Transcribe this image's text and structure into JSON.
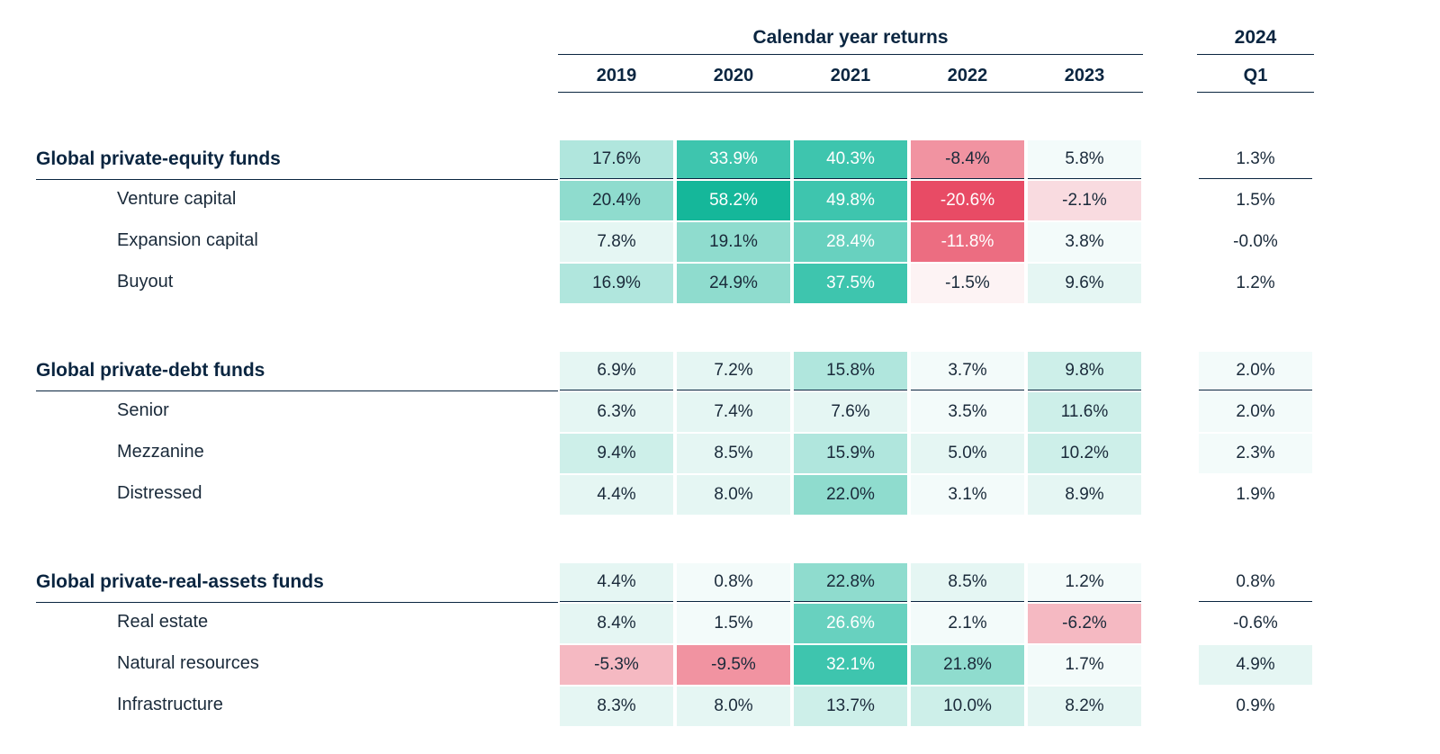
{
  "header": {
    "group_label": "Calendar year returns",
    "quarter_label": "2024",
    "years": [
      "2019",
      "2020",
      "2021",
      "2022",
      "2023"
    ],
    "quarter_col": "Q1"
  },
  "colors": {
    "teal_scale": [
      "#f3fbfa",
      "#e5f6f3",
      "#cdefe9",
      "#b0e6dd",
      "#8fdcce",
      "#68d1bf",
      "#3ec5ae",
      "#15b79a"
    ],
    "red_scale": [
      "#fdf3f4",
      "#f9dbe0",
      "#f5b9c2",
      "#f193a1",
      "#ec6d81",
      "#e84b65"
    ],
    "text_dark": "#1a2a3a",
    "text_white": "#ffffff",
    "border": "#0a2540"
  },
  "groups": [
    {
      "name": "Global private-equity funds",
      "totals": {
        "years": [
          {
            "v": "17.6%",
            "bg": "#b0e6dd",
            "fg": "#1a2a3a"
          },
          {
            "v": "33.9%",
            "bg": "#3ec5ae",
            "fg": "#ffffff"
          },
          {
            "v": "40.3%",
            "bg": "#3ec5ae",
            "fg": "#ffffff"
          },
          {
            "v": "-8.4%",
            "bg": "#f193a1",
            "fg": "#1a2a3a"
          },
          {
            "v": "5.8%",
            "bg": "#f3fbfa",
            "fg": "#1a2a3a"
          }
        ],
        "quarter": {
          "v": "1.3%",
          "bg": "#ffffff",
          "fg": "#1a2a3a"
        }
      },
      "rows": [
        {
          "label": "Venture capital",
          "years": [
            {
              "v": "20.4%",
              "bg": "#8fdcce",
              "fg": "#1a2a3a"
            },
            {
              "v": "58.2%",
              "bg": "#15b79a",
              "fg": "#ffffff"
            },
            {
              "v": "49.8%",
              "bg": "#3ec5ae",
              "fg": "#ffffff"
            },
            {
              "v": "-20.6%",
              "bg": "#e84b65",
              "fg": "#ffffff"
            },
            {
              "v": "-2.1%",
              "bg": "#f9dbe0",
              "fg": "#1a2a3a"
            }
          ],
          "quarter": {
            "v": "1.5%",
            "bg": "#ffffff",
            "fg": "#1a2a3a"
          }
        },
        {
          "label": "Expansion capital",
          "years": [
            {
              "v": "7.8%",
              "bg": "#e5f6f3",
              "fg": "#1a2a3a"
            },
            {
              "v": "19.1%",
              "bg": "#8fdcce",
              "fg": "#1a2a3a"
            },
            {
              "v": "28.4%",
              "bg": "#68d1bf",
              "fg": "#ffffff"
            },
            {
              "v": "-11.8%",
              "bg": "#ec6d81",
              "fg": "#ffffff"
            },
            {
              "v": "3.8%",
              "bg": "#f3fbfa",
              "fg": "#1a2a3a"
            }
          ],
          "quarter": {
            "v": "-0.0%",
            "bg": "#ffffff",
            "fg": "#1a2a3a"
          }
        },
        {
          "label": "Buyout",
          "years": [
            {
              "v": "16.9%",
              "bg": "#b0e6dd",
              "fg": "#1a2a3a"
            },
            {
              "v": "24.9%",
              "bg": "#8fdcce",
              "fg": "#1a2a3a"
            },
            {
              "v": "37.5%",
              "bg": "#3ec5ae",
              "fg": "#ffffff"
            },
            {
              "v": "-1.5%",
              "bg": "#fdf3f4",
              "fg": "#1a2a3a"
            },
            {
              "v": "9.6%",
              "bg": "#e5f6f3",
              "fg": "#1a2a3a"
            }
          ],
          "quarter": {
            "v": "1.2%",
            "bg": "#ffffff",
            "fg": "#1a2a3a"
          }
        }
      ]
    },
    {
      "name": "Global private-debt funds",
      "totals": {
        "years": [
          {
            "v": "6.9%",
            "bg": "#e5f6f3",
            "fg": "#1a2a3a"
          },
          {
            "v": "7.2%",
            "bg": "#e5f6f3",
            "fg": "#1a2a3a"
          },
          {
            "v": "15.8%",
            "bg": "#b0e6dd",
            "fg": "#1a2a3a"
          },
          {
            "v": "3.7%",
            "bg": "#f3fbfa",
            "fg": "#1a2a3a"
          },
          {
            "v": "9.8%",
            "bg": "#cdefe9",
            "fg": "#1a2a3a"
          }
        ],
        "quarter": {
          "v": "2.0%",
          "bg": "#f3fbfa",
          "fg": "#1a2a3a"
        }
      },
      "rows": [
        {
          "label": "Senior",
          "years": [
            {
              "v": "6.3%",
              "bg": "#e5f6f3",
              "fg": "#1a2a3a"
            },
            {
              "v": "7.4%",
              "bg": "#e5f6f3",
              "fg": "#1a2a3a"
            },
            {
              "v": "7.6%",
              "bg": "#e5f6f3",
              "fg": "#1a2a3a"
            },
            {
              "v": "3.5%",
              "bg": "#f3fbfa",
              "fg": "#1a2a3a"
            },
            {
              "v": "11.6%",
              "bg": "#cdefe9",
              "fg": "#1a2a3a"
            }
          ],
          "quarter": {
            "v": "2.0%",
            "bg": "#f3fbfa",
            "fg": "#1a2a3a"
          }
        },
        {
          "label": "Mezzanine",
          "years": [
            {
              "v": "9.4%",
              "bg": "#cdefe9",
              "fg": "#1a2a3a"
            },
            {
              "v": "8.5%",
              "bg": "#e5f6f3",
              "fg": "#1a2a3a"
            },
            {
              "v": "15.9%",
              "bg": "#b0e6dd",
              "fg": "#1a2a3a"
            },
            {
              "v": "5.0%",
              "bg": "#e5f6f3",
              "fg": "#1a2a3a"
            },
            {
              "v": "10.2%",
              "bg": "#cdefe9",
              "fg": "#1a2a3a"
            }
          ],
          "quarter": {
            "v": "2.3%",
            "bg": "#f3fbfa",
            "fg": "#1a2a3a"
          }
        },
        {
          "label": "Distressed",
          "years": [
            {
              "v": "4.4%",
              "bg": "#e5f6f3",
              "fg": "#1a2a3a"
            },
            {
              "v": "8.0%",
              "bg": "#e5f6f3",
              "fg": "#1a2a3a"
            },
            {
              "v": "22.0%",
              "bg": "#8fdcce",
              "fg": "#1a2a3a"
            },
            {
              "v": "3.1%",
              "bg": "#f3fbfa",
              "fg": "#1a2a3a"
            },
            {
              "v": "8.9%",
              "bg": "#e5f6f3",
              "fg": "#1a2a3a"
            }
          ],
          "quarter": {
            "v": "1.9%",
            "bg": "#ffffff",
            "fg": "#1a2a3a"
          }
        }
      ]
    },
    {
      "name": "Global private-real-assets funds",
      "totals": {
        "years": [
          {
            "v": "4.4%",
            "bg": "#e5f6f3",
            "fg": "#1a2a3a"
          },
          {
            "v": "0.8%",
            "bg": "#f3fbfa",
            "fg": "#1a2a3a"
          },
          {
            "v": "22.8%",
            "bg": "#8fdcce",
            "fg": "#1a2a3a"
          },
          {
            "v": "8.5%",
            "bg": "#e5f6f3",
            "fg": "#1a2a3a"
          },
          {
            "v": "1.2%",
            "bg": "#f3fbfa",
            "fg": "#1a2a3a"
          }
        ],
        "quarter": {
          "v": "0.8%",
          "bg": "#ffffff",
          "fg": "#1a2a3a"
        }
      },
      "rows": [
        {
          "label": "Real estate",
          "years": [
            {
              "v": "8.4%",
              "bg": "#e5f6f3",
              "fg": "#1a2a3a"
            },
            {
              "v": "1.5%",
              "bg": "#f3fbfa",
              "fg": "#1a2a3a"
            },
            {
              "v": "26.6%",
              "bg": "#68d1bf",
              "fg": "#ffffff"
            },
            {
              "v": "2.1%",
              "bg": "#f3fbfa",
              "fg": "#1a2a3a"
            },
            {
              "v": "-6.2%",
              "bg": "#f5b9c2",
              "fg": "#1a2a3a"
            }
          ],
          "quarter": {
            "v": "-0.6%",
            "bg": "#ffffff",
            "fg": "#1a2a3a"
          }
        },
        {
          "label": "Natural resources",
          "years": [
            {
              "v": "-5.3%",
              "bg": "#f5b9c2",
              "fg": "#1a2a3a"
            },
            {
              "v": "-9.5%",
              "bg": "#f193a1",
              "fg": "#1a2a3a"
            },
            {
              "v": "32.1%",
              "bg": "#3ec5ae",
              "fg": "#ffffff"
            },
            {
              "v": "21.8%",
              "bg": "#8fdcce",
              "fg": "#1a2a3a"
            },
            {
              "v": "1.7%",
              "bg": "#f3fbfa",
              "fg": "#1a2a3a"
            }
          ],
          "quarter": {
            "v": "4.9%",
            "bg": "#e5f6f3",
            "fg": "#1a2a3a"
          }
        },
        {
          "label": "Infrastructure",
          "years": [
            {
              "v": "8.3%",
              "bg": "#e5f6f3",
              "fg": "#1a2a3a"
            },
            {
              "v": "8.0%",
              "bg": "#e5f6f3",
              "fg": "#1a2a3a"
            },
            {
              "v": "13.7%",
              "bg": "#cdefe9",
              "fg": "#1a2a3a"
            },
            {
              "v": "10.0%",
              "bg": "#cdefe9",
              "fg": "#1a2a3a"
            },
            {
              "v": "8.2%",
              "bg": "#e5f6f3",
              "fg": "#1a2a3a"
            }
          ],
          "quarter": {
            "v": "0.9%",
            "bg": "#ffffff",
            "fg": "#1a2a3a"
          }
        }
      ]
    }
  ]
}
